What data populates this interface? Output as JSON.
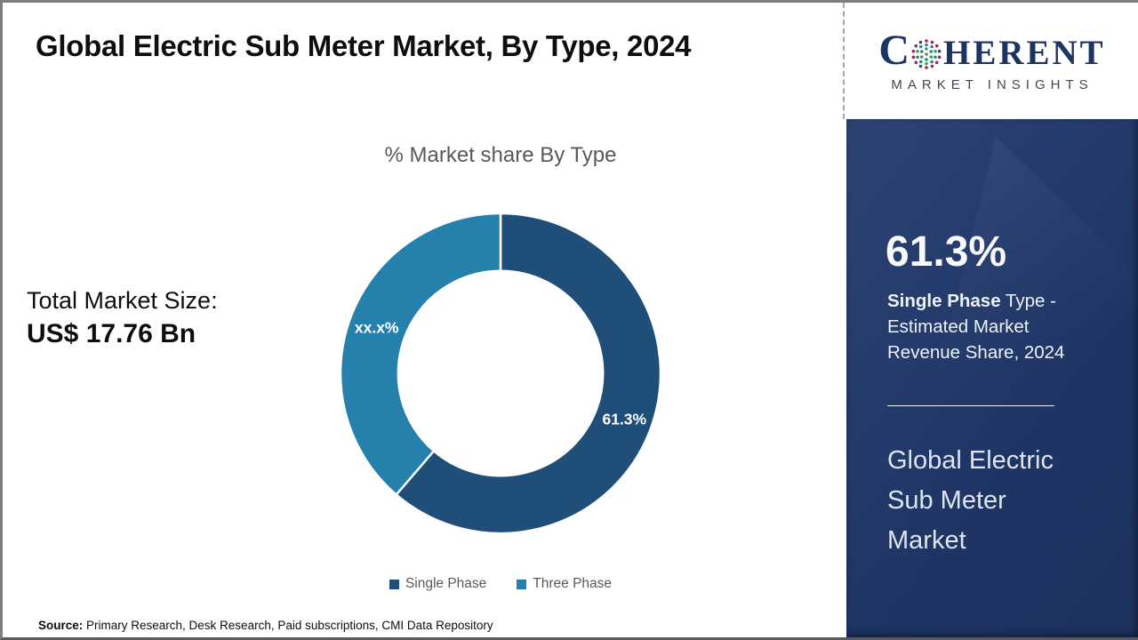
{
  "header": {
    "title": "Global Electric Sub Meter Market, By Type, 2024"
  },
  "logo": {
    "c": "C",
    "rest": "HERENT",
    "subtitle": "MARKET INSIGHTS",
    "brand_navy": "#1c3461"
  },
  "chart_data": {
    "type": "pie",
    "donut": true,
    "title": "% Market share By Type",
    "categories": [
      "Single Phase",
      "Three Phase"
    ],
    "values": [
      61.3,
      38.7
    ],
    "display_labels": [
      "61.3%",
      "xx.x%"
    ],
    "colors": [
      "#1f4e79",
      "#2581ac"
    ],
    "start_angle_deg": 0,
    "direction": "clockwise",
    "legend_position": "bottom",
    "hole_ratio": 0.64
  },
  "left_panel": {
    "total_label": "Total Market Size:",
    "total_value": "US$ 17.76 Bn"
  },
  "sidebar": {
    "panel_color": "#20386a",
    "highlight_value": "61.3%",
    "highlight_bold": "Single Phase",
    "highlight_line1_rest": " Type -",
    "highlight_line2": "Estimated Market",
    "highlight_line3": "Revenue Share, 2024",
    "market_name_lines": {
      "0": "Global Electric",
      "1": "Sub Meter",
      "2": "Market"
    }
  },
  "footer": {
    "source_label": "Source:",
    "source_text": " Primary Research, Desk Research, Paid subscriptions, CMI Data Repository"
  }
}
